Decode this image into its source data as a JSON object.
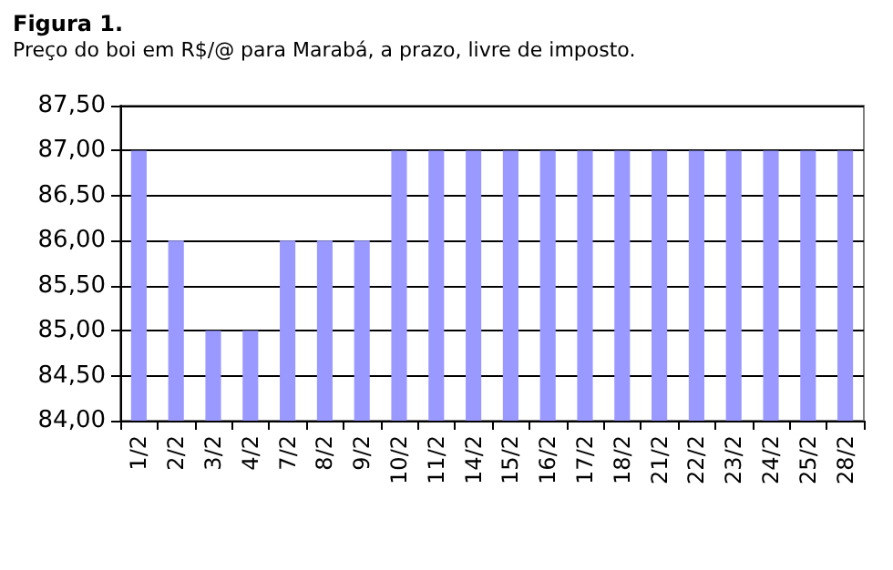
{
  "chart_data": {
    "type": "bar",
    "title": "Figura 1.",
    "subtitle": "Preço do boi em R$/@ para Marabá, a prazo, livre de imposto.",
    "categories": [
      "1/2",
      "2/2",
      "3/2",
      "4/2",
      "7/2",
      "8/2",
      "9/2",
      "10/2",
      "11/2",
      "14/2",
      "15/2",
      "16/2",
      "17/2",
      "18/2",
      "21/2",
      "22/2",
      "23/2",
      "24/2",
      "25/2",
      "28/2"
    ],
    "values": [
      87,
      86,
      85,
      85,
      86,
      86,
      86,
      87,
      87,
      87,
      87,
      87,
      87,
      87,
      87,
      87,
      87,
      87,
      87,
      87
    ],
    "color": "#9999ff",
    "ylim": [
      84,
      87.5
    ],
    "yticks": [
      {
        "value": 84,
        "label": "84,00"
      },
      {
        "value": 84.5,
        "label": "84,50"
      },
      {
        "value": 85,
        "label": "85,00"
      },
      {
        "value": 85.5,
        "label": "85,50"
      },
      {
        "value": 86,
        "label": "86,00"
      },
      {
        "value": 86.5,
        "label": "86,50"
      },
      {
        "value": 87,
        "label": "87,00"
      },
      {
        "value": 87.5,
        "label": "87,50"
      }
    ],
    "grid": "y"
  }
}
